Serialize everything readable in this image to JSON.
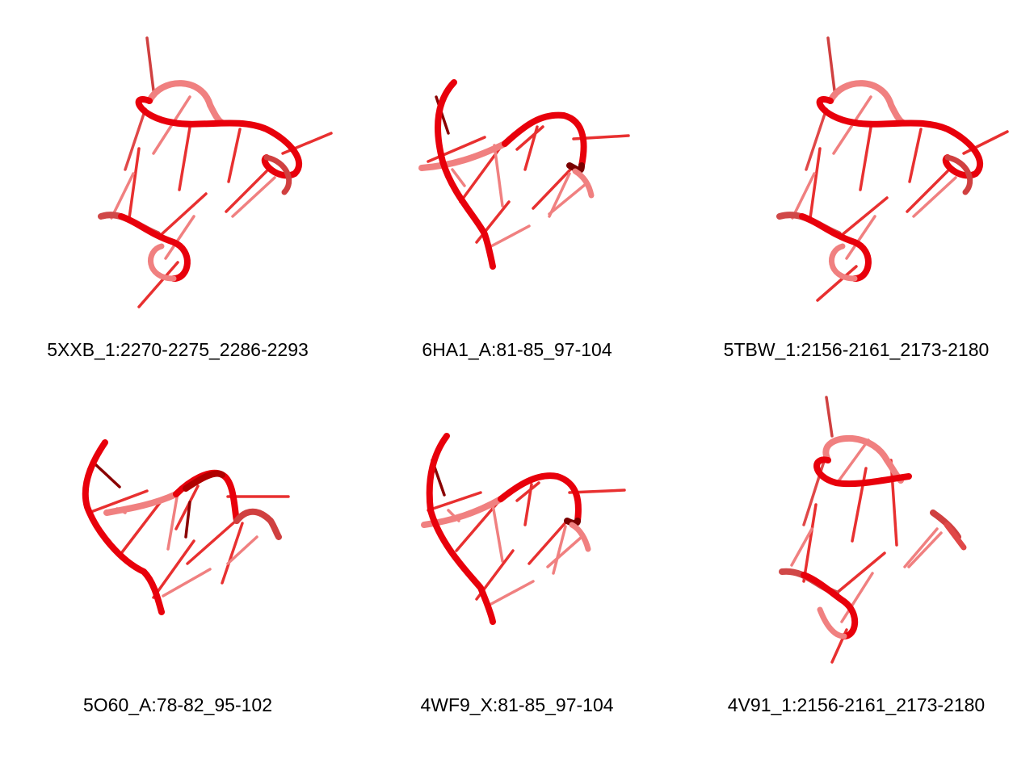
{
  "figure": {
    "panels": [
      {
        "label": "5XXB_1:2270-2275_2286-2293"
      },
      {
        "label": "6HA1_A:81-85_97-104"
      },
      {
        "label": "5TBW_1:2156-2161_2173-2180"
      },
      {
        "label": "5O60_A:78-82_95-102"
      },
      {
        "label": "4WF9_X:81-85_97-104"
      },
      {
        "label": "4V91_1:2156-2161_2173-2180"
      }
    ],
    "colors": {
      "strand": "#e8000b",
      "strand_light": "#f07070",
      "strand_dark": "#8a0000"
    }
  }
}
